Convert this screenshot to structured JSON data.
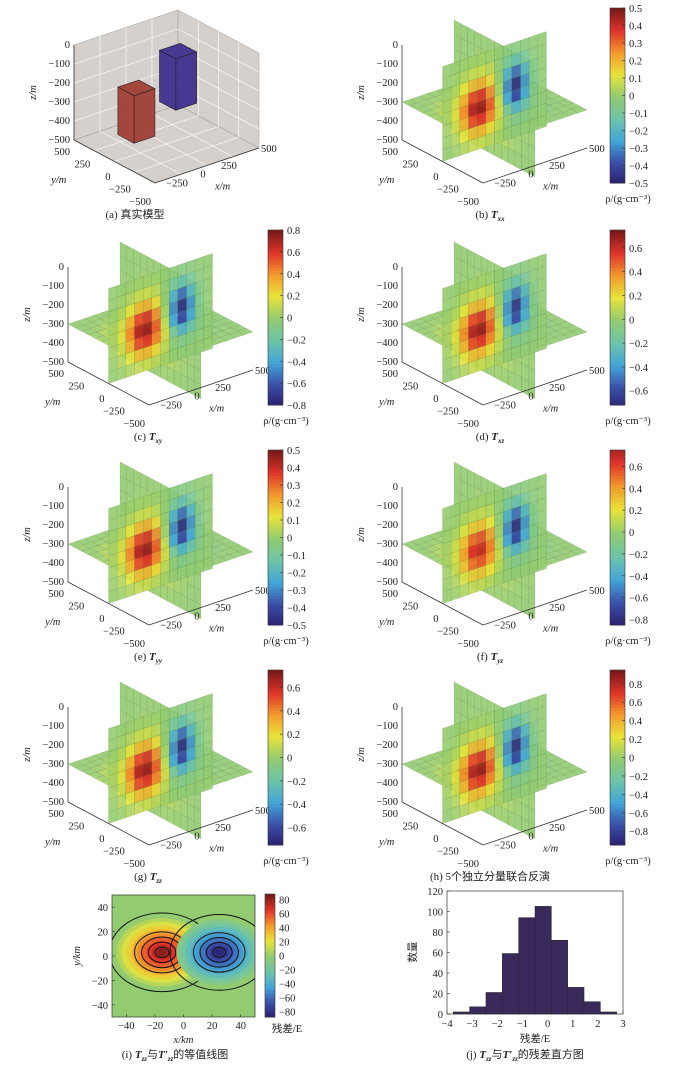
{
  "axis_labels": {
    "z": "z/m",
    "y": "y/m",
    "x": "x/m"
  },
  "z_ticks": [
    "0",
    "−100",
    "−200",
    "−300",
    "−400",
    "−500"
  ],
  "y_ticks": [
    "500",
    "250",
    "0",
    "−250",
    "−500"
  ],
  "x_ticks": [
    "−250",
    "0",
    "250",
    "500"
  ],
  "colorbar_label": "ρ/(g·cm⁻³)",
  "colors": {
    "box_positive": "#9e3a30",
    "box_negative": "#3b2a8c",
    "axes_background": "#d6d0cc",
    "histogram_bar": "#3a2a5c"
  },
  "panels": [
    {
      "id": "a",
      "label": "(a)",
      "title": "真实模型",
      "type": "model"
    },
    {
      "id": "b",
      "label": "(b)",
      "symbol": "T",
      "sub": "xx",
      "type": "slice",
      "range": [
        -0.5,
        0.5
      ],
      "ticks": [
        "0.5",
        "0.4",
        "0.3",
        "0.2",
        "0.1",
        "0",
        "−0.1",
        "−0.2",
        "−0.3",
        "−0.4",
        "−0.5"
      ],
      "tick_values": [
        0.5,
        0.4,
        0.3,
        0.2,
        0.1,
        0,
        -0.1,
        -0.2,
        -0.3,
        -0.4,
        -0.5
      ]
    },
    {
      "id": "c",
      "label": "(c)",
      "symbol": "T",
      "sub": "xy",
      "type": "slice",
      "range": [
        -0.8,
        0.8
      ],
      "ticks": [
        "0.8",
        "0.6",
        "0.4",
        "0.2",
        "0",
        "−0.2",
        "−0.4",
        "−0.6",
        "−0.8"
      ],
      "tick_values": [
        0.8,
        0.6,
        0.4,
        0.2,
        0,
        -0.2,
        -0.4,
        -0.6,
        -0.8
      ]
    },
    {
      "id": "d",
      "label": "(d)",
      "symbol": "T",
      "sub": "xz",
      "type": "slice",
      "range": [
        -0.72,
        0.75
      ],
      "ticks": [
        "0.6",
        "0.4",
        "0.2",
        "0",
        "−0.2",
        "−0.4",
        "−0.6"
      ],
      "tick_values": [
        0.6,
        0.4,
        0.2,
        0,
        -0.2,
        -0.4,
        -0.6
      ]
    },
    {
      "id": "e",
      "label": "(e)",
      "symbol": "T",
      "sub": "yy",
      "type": "slice",
      "range": [
        -0.5,
        0.5
      ],
      "ticks": [
        "0.5",
        "0.4",
        "0.3",
        "0.2",
        "0.1",
        "0",
        "−0.1",
        "−0.2",
        "−0.3",
        "−0.4",
        "−0.5"
      ],
      "tick_values": [
        0.5,
        0.4,
        0.3,
        0.2,
        0.1,
        0,
        -0.1,
        -0.2,
        -0.3,
        -0.4,
        -0.5
      ]
    },
    {
      "id": "f",
      "label": "(f)",
      "symbol": "T",
      "sub": "yz",
      "type": "slice",
      "range": [
        -0.85,
        0.75
      ],
      "ticks": [
        "0.6",
        "0.4",
        "0.2",
        "0",
        "−0.2",
        "−0.4",
        "−0.6",
        "−0.8"
      ],
      "tick_values": [
        0.6,
        0.4,
        0.2,
        0,
        -0.2,
        -0.4,
        -0.6,
        -0.8
      ]
    },
    {
      "id": "g",
      "label": "(g)",
      "symbol": "T",
      "sub": "zz",
      "type": "slice",
      "range": [
        -0.75,
        0.75
      ],
      "ticks": [
        "0.6",
        "0.4",
        "0.2",
        "0",
        "−0.2",
        "−0.4",
        "−0.6"
      ],
      "tick_values": [
        0.6,
        0.4,
        0.2,
        0,
        -0.2,
        -0.4,
        -0.6
      ]
    },
    {
      "id": "h",
      "label": "(h)",
      "title": "5个独立分量联合反演",
      "type": "slice",
      "range": [
        -0.95,
        0.95
      ],
      "ticks": [
        "0.8",
        "0.6",
        "0.4",
        "0.2",
        "0",
        "−0.2",
        "−0.4",
        "−0.6",
        "−0.8"
      ],
      "tick_values": [
        0.8,
        0.6,
        0.4,
        0.2,
        0,
        -0.2,
        -0.4,
        -0.6,
        -0.8
      ]
    }
  ],
  "chart_data": [
    {
      "id": "i",
      "type": "contour",
      "caption": {
        "label": "(i)",
        "symbol1": "T",
        "sub1": "zz",
        "joiner": "与",
        "symbol2": "T′",
        "sub2": "zz",
        "title": "的等值线图"
      },
      "xlabel": "x/km",
      "ylabel": "y/km",
      "xlim": [
        -50,
        50
      ],
      "ylim": [
        -50,
        50
      ],
      "xticks": [
        -40,
        -20,
        0,
        20,
        40
      ],
      "xtick_labels": [
        "−40",
        "−20",
        "0",
        "20",
        "40"
      ],
      "yticks": [
        40,
        20,
        0,
        -20,
        -40
      ],
      "ytick_labels": [
        "40",
        "20",
        "0",
        "−20",
        "−40"
      ],
      "colorbar": {
        "label": "残差/E",
        "range": [
          -88,
          88
        ],
        "ticks": [
          80,
          60,
          40,
          20,
          0,
          -20,
          -40,
          -60,
          -80
        ],
        "tick_labels": [
          "80",
          "60",
          "40",
          "20",
          "0",
          "−20",
          "−40",
          "−60",
          "−80"
        ]
      },
      "anomalies": [
        {
          "center": [
            -15,
            3
          ],
          "peak": 85,
          "radius": [
            32,
            28
          ]
        },
        {
          "center": [
            25,
            3
          ],
          "peak": -85,
          "radius": [
            30,
            27
          ]
        }
      ]
    },
    {
      "id": "j",
      "type": "bar",
      "caption": {
        "label": "(j)",
        "symbol1": "T",
        "sub1": "zz",
        "joiner": "与",
        "symbol2": "T′",
        "sub2": "zz",
        "title": "的残差直方图"
      },
      "xlabel": "残差/E",
      "ylabel": "数量",
      "xlim": [
        -4,
        3
      ],
      "ylim": [
        0,
        120
      ],
      "xticks": [
        -4,
        -3,
        -2,
        -1,
        0,
        1,
        2,
        3
      ],
      "xtick_labels": [
        "−4",
        "−3",
        "−2",
        "−1",
        "0",
        "1",
        "2",
        "3"
      ],
      "yticks": [
        0,
        20,
        40,
        60,
        80,
        100,
        120
      ],
      "ytick_labels": [
        "0",
        "20",
        "40",
        "60",
        "80",
        "100",
        "120"
      ],
      "bin_edges": [
        -3.75,
        -3.1,
        -2.45,
        -1.8,
        -1.15,
        -0.5,
        0.15,
        0.8,
        1.45,
        2.1,
        2.75
      ],
      "values": [
        2,
        7,
        21,
        59,
        94,
        105,
        72,
        26,
        12,
        2
      ]
    }
  ]
}
